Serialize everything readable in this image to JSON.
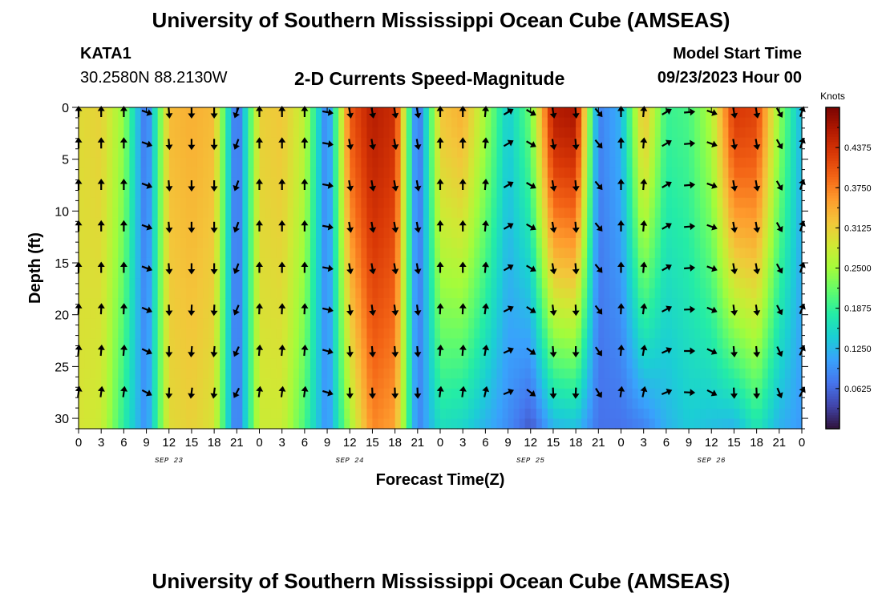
{
  "header": {
    "title": "University of Southern Mississippi Ocean Cube (AMSEAS)",
    "station": "KATA1",
    "coords": "30.2580N  88.2130W",
    "plot_title": "2-D Currents Speed-Magnitude",
    "model_start_label": "Model Start Time",
    "model_start_value": "09/23/2023 Hour 00"
  },
  "footer": {
    "title": "University of Southern Mississippi Ocean Cube (AMSEAS)"
  },
  "colors": {
    "colormap": [
      "#30123b",
      "#4145ab",
      "#4675ed",
      "#39a2fc",
      "#1bcfd4",
      "#24eca6",
      "#61fc6c",
      "#a4fc3b",
      "#d1e834",
      "#f3c63a",
      "#fe9b2d",
      "#f36315",
      "#d93806",
      "#b11901",
      "#7a0402"
    ]
  },
  "chart_data": {
    "type": "heatmap",
    "xlabel": "Forecast Time(Z)",
    "ylabel": "Depth (ft)",
    "x_tick_labels": [
      "0",
      "3",
      "6",
      "9",
      "12",
      "15",
      "18",
      "21",
      "0",
      "3",
      "6",
      "9",
      "12",
      "15",
      "18",
      "21",
      "0",
      "3",
      "6",
      "9",
      "12",
      "15",
      "18",
      "21",
      "0",
      "3",
      "6",
      "9",
      "12",
      "15",
      "18",
      "21",
      "0"
    ],
    "date_labels": [
      "SEP 23",
      "SEP 24",
      "SEP 25",
      "SEP 26"
    ],
    "y_ticks": [
      0,
      5,
      10,
      15,
      20,
      25,
      30
    ],
    "ylim": [
      0,
      31
    ],
    "x_range_hours": [
      0,
      96
    ],
    "colorbar_label": "Knots",
    "colorbar_range": [
      0,
      0.5
    ],
    "colorbar_ticks": [
      "0.0625",
      "0.1250",
      "0.1875",
      "0.2500",
      "0.3125",
      "0.3750",
      "0.4375"
    ],
    "time_hours": [
      0,
      3,
      6,
      9,
      12,
      15,
      18,
      21,
      24,
      27,
      30,
      33,
      36,
      39,
      42,
      45,
      48,
      51,
      54,
      57,
      60,
      63,
      66,
      69,
      72,
      75,
      78,
      81,
      84,
      87,
      90,
      93,
      96
    ],
    "speed_profile_knots": {
      "surface": [
        0.3,
        0.31,
        0.24,
        0.06,
        0.33,
        0.34,
        0.33,
        0.05,
        0.31,
        0.32,
        0.27,
        0.07,
        0.4,
        0.46,
        0.44,
        0.05,
        0.32,
        0.34,
        0.25,
        0.14,
        0.22,
        0.46,
        0.47,
        0.08,
        0.12,
        0.33,
        0.19,
        0.2,
        0.26,
        0.43,
        0.42,
        0.24,
        0.12
      ],
      "bottom": [
        0.29,
        0.28,
        0.18,
        0.09,
        0.3,
        0.31,
        0.29,
        0.06,
        0.28,
        0.28,
        0.2,
        0.09,
        0.25,
        0.37,
        0.35,
        0.08,
        0.16,
        0.15,
        0.12,
        0.09,
        0.05,
        0.12,
        0.13,
        0.07,
        0.07,
        0.08,
        0.12,
        0.14,
        0.13,
        0.12,
        0.17,
        0.12,
        0.1
      ]
    },
    "arrow_rows_depth_ft": [
      0,
      3.5,
      7.5,
      11.5,
      15.5,
      19.5,
      23.5,
      27.5
    ],
    "arrow_hours": [
      0,
      3,
      6,
      9,
      12,
      15,
      18,
      21,
      24,
      27,
      30,
      33,
      36,
      39,
      42,
      45,
      48,
      51,
      54,
      57,
      60,
      63,
      66,
      69,
      72,
      75,
      78,
      81,
      84,
      87,
      90,
      93,
      96
    ],
    "arrow_direction_deg": [
      0,
      0,
      0,
      110,
      175,
      180,
      180,
      200,
      0,
      0,
      0,
      100,
      170,
      170,
      170,
      170,
      0,
      0,
      5,
      60,
      120,
      170,
      175,
      140,
      0,
      5,
      60,
      85,
      110,
      170,
      170,
      150,
      20
    ]
  }
}
